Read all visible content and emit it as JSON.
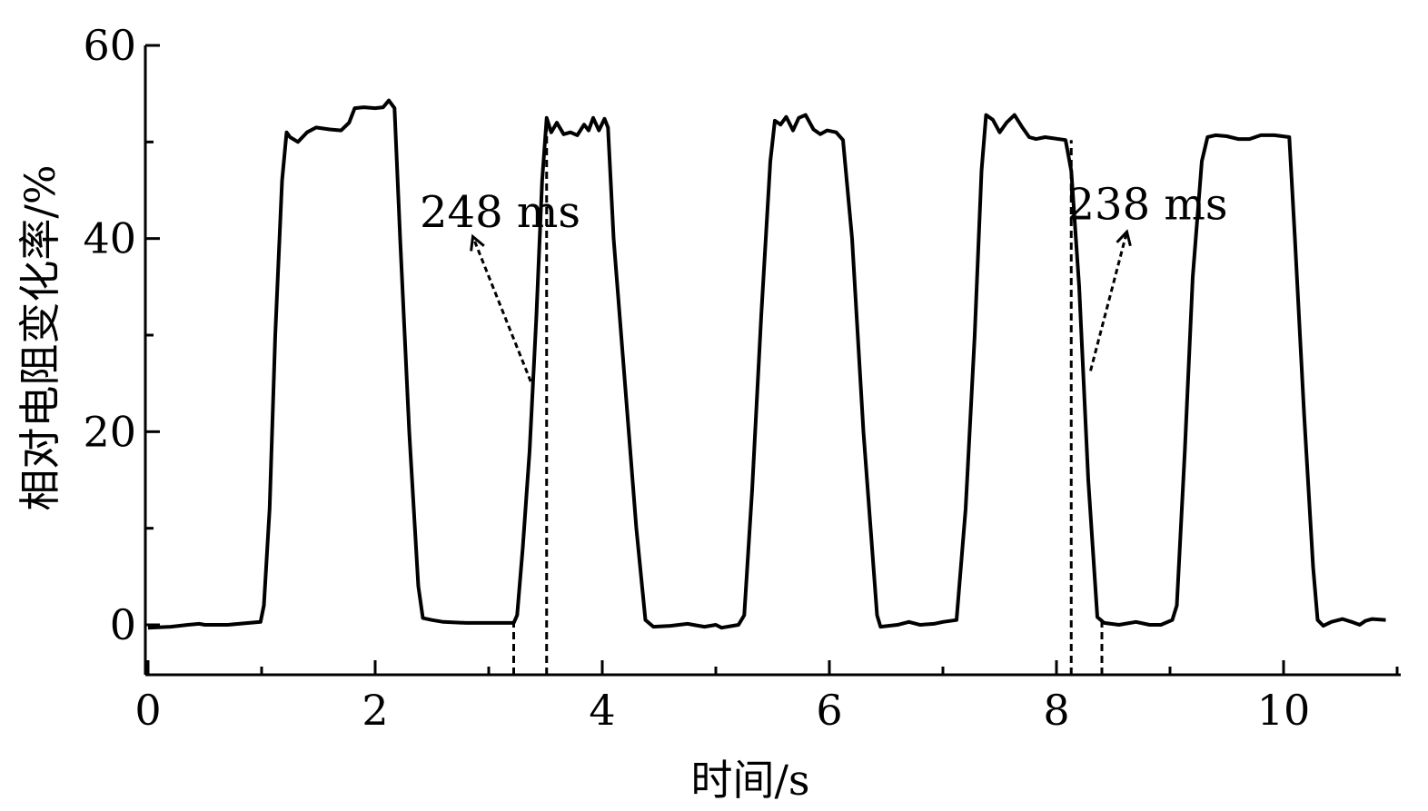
{
  "chart_data": {
    "type": "line",
    "title": "",
    "xlabel": "时间/s",
    "ylabel": "相对电阻变化率/%",
    "xlim": [
      0,
      11
    ],
    "ylim": [
      -5,
      60
    ],
    "xticks": [
      0,
      2,
      4,
      6,
      8,
      10
    ],
    "yticks": [
      0,
      20,
      40,
      60
    ],
    "x_minor_step": 1,
    "y_minor_step": 10,
    "grid": false,
    "legend": "none",
    "series": [
      {
        "color": "#000000",
        "points": [
          [
            0,
            -0.3
          ],
          [
            0.2,
            -0.2
          ],
          [
            0.35,
            0.0
          ],
          [
            0.45,
            0.1
          ],
          [
            0.5,
            0.0
          ],
          [
            0.7,
            0.0
          ],
          [
            0.8,
            0.1
          ],
          [
            0.99,
            0.3
          ],
          [
            1.02,
            2
          ],
          [
            1.07,
            12
          ],
          [
            1.12,
            30
          ],
          [
            1.18,
            46
          ],
          [
            1.22,
            51
          ],
          [
            1.25,
            50.5
          ],
          [
            1.32,
            50
          ],
          [
            1.4,
            51
          ],
          [
            1.48,
            51.5
          ],
          [
            1.6,
            51.3
          ],
          [
            1.7,
            51.2
          ],
          [
            1.77,
            52
          ],
          [
            1.82,
            53.5
          ],
          [
            1.9,
            53.6
          ],
          [
            2.0,
            53.5
          ],
          [
            2.07,
            53.6
          ],
          [
            2.12,
            54.3
          ],
          [
            2.17,
            53.5
          ],
          [
            2.22,
            40
          ],
          [
            2.3,
            20
          ],
          [
            2.38,
            4
          ],
          [
            2.42,
            0.7
          ],
          [
            2.5,
            0.5
          ],
          [
            2.6,
            0.3
          ],
          [
            2.8,
            0.2
          ],
          [
            3.0,
            0.2
          ],
          [
            3.22,
            0.2
          ],
          [
            3.25,
            1
          ],
          [
            3.3,
            8
          ],
          [
            3.36,
            18
          ],
          [
            3.42,
            32
          ],
          [
            3.47,
            46
          ],
          [
            3.51,
            52.5
          ],
          [
            3.55,
            51
          ],
          [
            3.6,
            52
          ],
          [
            3.66,
            50.8
          ],
          [
            3.72,
            51
          ],
          [
            3.78,
            50.7
          ],
          [
            3.84,
            51.8
          ],
          [
            3.88,
            51.2
          ],
          [
            3.92,
            52.5
          ],
          [
            3.97,
            51.2
          ],
          [
            4.02,
            52.4
          ],
          [
            4.05,
            51.5
          ],
          [
            4.1,
            40
          ],
          [
            4.2,
            25
          ],
          [
            4.3,
            10
          ],
          [
            4.38,
            0.5
          ],
          [
            4.45,
            -0.2
          ],
          [
            4.6,
            -0.1
          ],
          [
            4.75,
            0.1
          ],
          [
            4.9,
            -0.2
          ],
          [
            5.0,
            0.0
          ],
          [
            5.05,
            -0.3
          ],
          [
            5.2,
            0.0
          ],
          [
            5.25,
            1
          ],
          [
            5.32,
            14
          ],
          [
            5.4,
            32
          ],
          [
            5.48,
            48
          ],
          [
            5.52,
            52.2
          ],
          [
            5.57,
            51.8
          ],
          [
            5.62,
            52.6
          ],
          [
            5.68,
            51.2
          ],
          [
            5.73,
            52.5
          ],
          [
            5.79,
            52.8
          ],
          [
            5.86,
            51.3
          ],
          [
            5.92,
            50.8
          ],
          [
            5.98,
            51.2
          ],
          [
            6.06,
            51
          ],
          [
            6.12,
            50.2
          ],
          [
            6.2,
            40
          ],
          [
            6.3,
            20
          ],
          [
            6.42,
            1
          ],
          [
            6.45,
            -0.2
          ],
          [
            6.6,
            0.0
          ],
          [
            6.7,
            0.3
          ],
          [
            6.8,
            0.0
          ],
          [
            6.92,
            0.1
          ],
          [
            7.0,
            0.3
          ],
          [
            7.12,
            0.5
          ],
          [
            7.2,
            12
          ],
          [
            7.28,
            30
          ],
          [
            7.34,
            47
          ],
          [
            7.38,
            52.8
          ],
          [
            7.44,
            52.3
          ],
          [
            7.5,
            51
          ],
          [
            7.56,
            52
          ],
          [
            7.63,
            52.8
          ],
          [
            7.7,
            51.5
          ],
          [
            7.76,
            50.5
          ],
          [
            7.82,
            50.3
          ],
          [
            7.9,
            50.5
          ],
          [
            8.08,
            50.2
          ],
          [
            8.13,
            47
          ],
          [
            8.2,
            35
          ],
          [
            8.28,
            15
          ],
          [
            8.36,
            0.8
          ],
          [
            8.42,
            0.2
          ],
          [
            8.55,
            0.0
          ],
          [
            8.7,
            0.3
          ],
          [
            8.82,
            0.0
          ],
          [
            8.92,
            0.0
          ],
          [
            9.02,
            0.5
          ],
          [
            9.06,
            2
          ],
          [
            9.13,
            18
          ],
          [
            9.2,
            36
          ],
          [
            9.28,
            48
          ],
          [
            9.33,
            50.5
          ],
          [
            9.4,
            50.7
          ],
          [
            9.5,
            50.6
          ],
          [
            9.6,
            50.3
          ],
          [
            9.7,
            50.3
          ],
          [
            9.8,
            50.7
          ],
          [
            9.92,
            50.7
          ],
          [
            10.05,
            50.5
          ],
          [
            10.1,
            40
          ],
          [
            10.18,
            22
          ],
          [
            10.26,
            6
          ],
          [
            10.3,
            0.5
          ],
          [
            10.35,
            -0.1
          ],
          [
            10.42,
            0.3
          ],
          [
            10.52,
            0.6
          ],
          [
            10.6,
            0.3
          ],
          [
            10.67,
            0.0
          ],
          [
            10.72,
            0.4
          ],
          [
            10.78,
            0.6
          ],
          [
            10.9,
            0.5
          ]
        ]
      }
    ],
    "guides": [
      {
        "x": 3.22,
        "y_top": 0.2
      },
      {
        "x": 3.51,
        "y_top": 52.5
      },
      {
        "x": 8.13,
        "y_top": 50.2
      },
      {
        "x": 8.4,
        "y_top": 0.3
      }
    ],
    "annotations": [
      {
        "text": "248 ms",
        "x": 3.1,
        "y": 41.2,
        "arrow_from": [
          3.37,
          25.2
        ],
        "arrow_to": [
          2.86,
          40.2
        ]
      },
      {
        "text": "238 ms",
        "x": 8.8,
        "y": 42.0,
        "arrow_from": [
          8.3,
          26.3
        ],
        "arrow_to": [
          8.62,
          40.7
        ]
      }
    ]
  }
}
